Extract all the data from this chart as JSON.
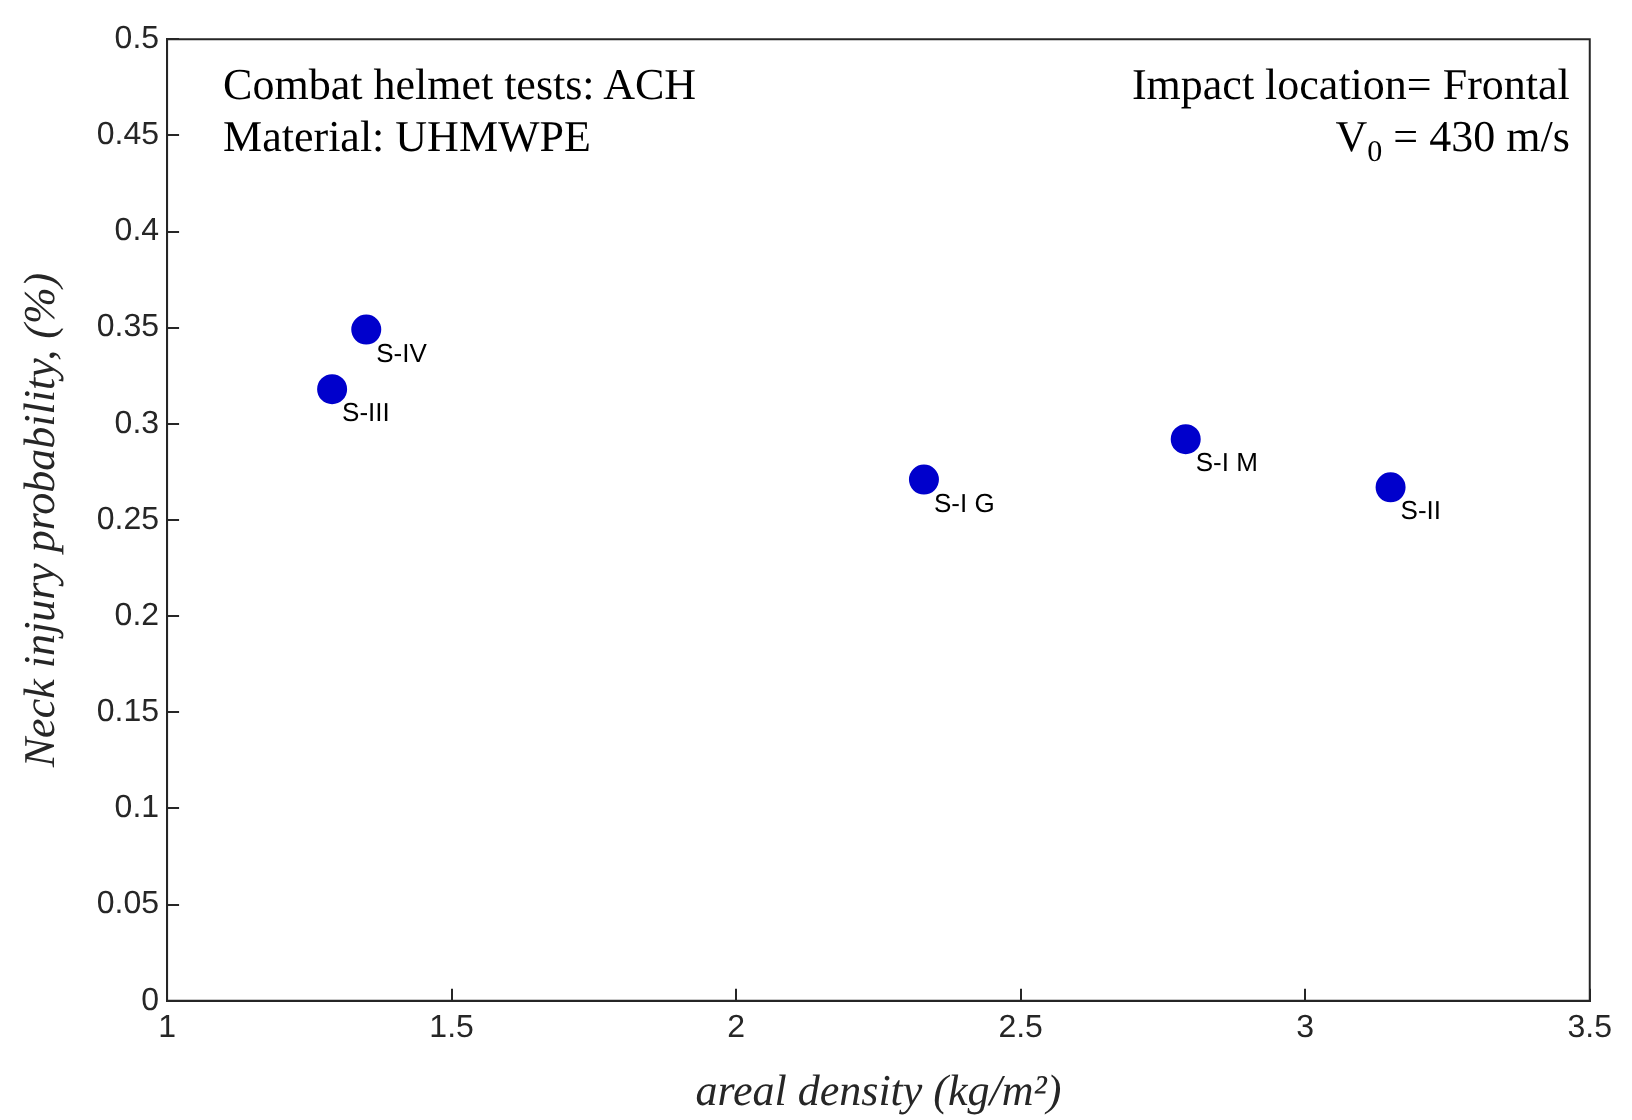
{
  "chart_data": {
    "type": "scatter",
    "xlabel": "areal density (kg/m²)",
    "ylabel": "Neck injury probability, (%)",
    "x": [
      1.35,
      1.29,
      2.33,
      2.79,
      3.15
    ],
    "series": [
      {
        "color": "#0000cc",
        "values": [
          0.349,
          0.318,
          0.271,
          0.292,
          0.267
        ]
      }
    ],
    "xlim": [
      1,
      3.5
    ],
    "xticks": [
      1,
      1.5,
      2,
      2.5,
      3,
      3.5
    ],
    "ylim": [
      0,
      0.5
    ],
    "yticks": [
      0,
      0.05,
      0.1,
      0.15,
      0.2,
      0.25,
      0.3,
      0.35,
      0.4,
      0.45,
      0.5
    ],
    "marker": "circle",
    "grid": false,
    "legend": false,
    "annotations": [
      "Combat helmet tests: ACH",
      "Impact location= Frontal",
      "Material: UHMWPE",
      "V$_{0}$ = 430 m/s",
      {
        "text": "S-IV",
        "x": 1.35,
        "y": 0.349
      },
      {
        "text": "S-III",
        "x": 1.29,
        "y": 0.318
      },
      {
        "text": "S-I G",
        "x": 2.33,
        "y": 0.271
      },
      {
        "text": "S-I M",
        "x": 2.79,
        "y": 0.292
      },
      {
        "text": "S-II",
        "x": 3.15,
        "y": 0.267
      }
    ]
  }
}
